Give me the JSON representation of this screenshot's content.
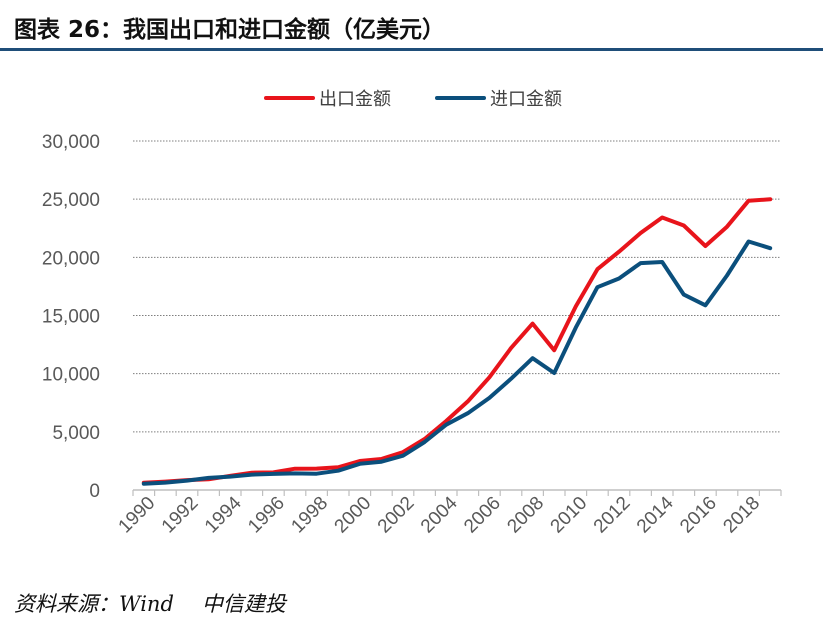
{
  "title": "图表 26：我国出口和进口金额（亿美元）",
  "source": {
    "label": "资料来源：Wind",
    "org": "中信建投"
  },
  "colors": {
    "title_rule": "#1f4e79",
    "export": "#e8141b",
    "import": "#0b4f7c",
    "grid": "#7f7f7f",
    "axis": "#bfbfbf"
  },
  "chart_data": {
    "type": "line",
    "title": "",
    "xlabel": "",
    "ylabel": "",
    "x": [
      1990,
      1991,
      1992,
      1993,
      1994,
      1995,
      1996,
      1997,
      1998,
      1999,
      2000,
      2001,
      2002,
      2003,
      2004,
      2005,
      2006,
      2007,
      2008,
      2009,
      2010,
      2011,
      2012,
      2013,
      2014,
      2015,
      2016,
      2017,
      2018,
      2019
    ],
    "x_tick_labels": [
      "1990",
      "1992",
      "1994",
      "1996",
      "1998",
      "2000",
      "2002",
      "2004",
      "2006",
      "2008",
      "2010",
      "2012",
      "2014",
      "2016",
      "2018"
    ],
    "ylim": [
      0,
      30000
    ],
    "y_ticks": [
      0,
      5000,
      10000,
      15000,
      20000,
      25000,
      30000
    ],
    "y_tick_labels": [
      "0",
      "5,000",
      "10,000",
      "15,000",
      "20,000",
      "25,000",
      "30,000"
    ],
    "grid": true,
    "legend_position": "top-center",
    "series": [
      {
        "name": "出口金额",
        "color": "#e8141b",
        "values": [
          621,
          719,
          849,
          917,
          1210,
          1488,
          1511,
          1828,
          1837,
          1949,
          2492,
          2661,
          3256,
          4382,
          5933,
          7620,
          9689,
          12200,
          14307,
          12016,
          15778,
          18984,
          20487,
          22090,
          23423,
          22735,
          20976,
          22633,
          24867,
          24990
        ]
      },
      {
        "name": "进口金额",
        "color": "#0b4f7c",
        "values": [
          534,
          638,
          806,
          1040,
          1156,
          1321,
          1388,
          1424,
          1402,
          1657,
          2251,
          2436,
          2952,
          4128,
          5612,
          6600,
          7915,
          9561,
          11326,
          10059,
          13962,
          17435,
          18184,
          19500,
          19603,
          16796,
          15879,
          18438,
          21357,
          20784
        ]
      }
    ]
  }
}
